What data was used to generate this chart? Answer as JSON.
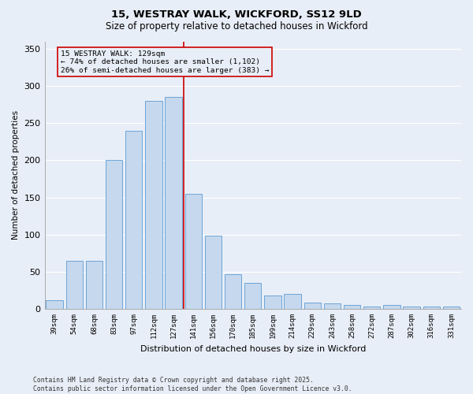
{
  "title_line1": "15, WESTRAY WALK, WICKFORD, SS12 9LD",
  "title_line2": "Size of property relative to detached houses in Wickford",
  "xlabel": "Distribution of detached houses by size in Wickford",
  "ylabel": "Number of detached properties",
  "categories": [
    "39sqm",
    "54sqm",
    "68sqm",
    "83sqm",
    "97sqm",
    "112sqm",
    "127sqm",
    "141sqm",
    "156sqm",
    "170sqm",
    "185sqm",
    "199sqm",
    "214sqm",
    "229sqm",
    "243sqm",
    "258sqm",
    "272sqm",
    "287sqm",
    "302sqm",
    "316sqm",
    "331sqm"
  ],
  "bar_heights": [
    12,
    65,
    65,
    200,
    240,
    280,
    285,
    155,
    99,
    47,
    35,
    18,
    20,
    9,
    7,
    5,
    3,
    5,
    3,
    3,
    3
  ],
  "bar_color": "#c5d8ed",
  "bar_edge_color": "#5b9bd5",
  "vline_x": 6.5,
  "vline_color": "#cc0000",
  "annotation_title": "15 WESTRAY WALK: 129sqm",
  "annotation_line2": "← 74% of detached houses are smaller (1,102)",
  "annotation_line3": "26% of semi-detached houses are larger (383) →",
  "ann_box_color": "#cc0000",
  "ylim": [
    0,
    360
  ],
  "yticks": [
    0,
    50,
    100,
    150,
    200,
    250,
    300,
    350
  ],
  "bg_color": "#e8eef7",
  "grid_color": "#ffffff",
  "footer_line1": "Contains HM Land Registry data © Crown copyright and database right 2025.",
  "footer_line2": "Contains public sector information licensed under the Open Government Licence v3.0."
}
